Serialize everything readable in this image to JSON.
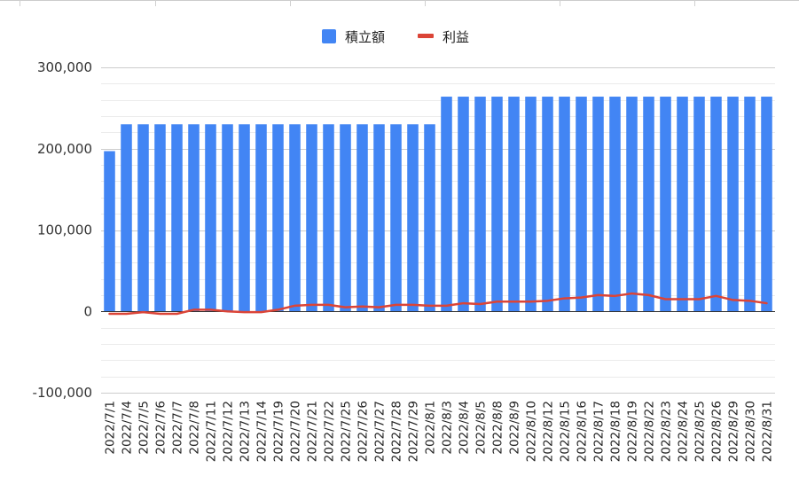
{
  "chart_data": {
    "type": "bar",
    "legend_position": "top-center",
    "grid": true,
    "ylim": [
      -100000,
      300000
    ],
    "yticks": [
      -100000,
      0,
      100000,
      200000,
      300000
    ],
    "ytick_labels": [
      "-100,000",
      "0",
      "100,000",
      "200,000",
      "300,000"
    ],
    "categories": [
      "2022/7/1",
      "2022/7/4",
      "2022/7/5",
      "2022/7/6",
      "2022/7/7",
      "2022/7/8",
      "2022/7/11",
      "2022/7/12",
      "2022/7/13",
      "2022/7/14",
      "2022/7/19",
      "2022/7/20",
      "2022/7/21",
      "2022/7/22",
      "2022/7/25",
      "2022/7/26",
      "2022/7/27",
      "2022/7/28",
      "2022/7/29",
      "2022/8/1",
      "2022/8/3",
      "2022/8/4",
      "2022/8/5",
      "2022/8/8",
      "2022/8/9",
      "2022/8/10",
      "2022/8/12",
      "2022/8/15",
      "2022/8/16",
      "2022/8/17",
      "2022/8/18",
      "2022/8/19",
      "2022/8/22",
      "2022/8/23",
      "2022/8/24",
      "2022/8/25",
      "2022/8/26",
      "2022/8/29",
      "2022/8/30",
      "2022/8/31"
    ],
    "series": [
      {
        "name": "積立額",
        "kind": "bar",
        "color": "#4285f4",
        "values": [
          197000,
          230000,
          230000,
          230000,
          230000,
          230000,
          230000,
          230000,
          230000,
          230000,
          230000,
          230000,
          230000,
          230000,
          230000,
          230000,
          230000,
          230000,
          230000,
          230000,
          264000,
          264000,
          264000,
          264000,
          264000,
          264000,
          264000,
          264000,
          264000,
          264000,
          264000,
          264000,
          264000,
          264000,
          264000,
          264000,
          264000,
          264000,
          264000,
          264000
        ]
      },
      {
        "name": "利益",
        "kind": "line",
        "color": "#db4437",
        "values": [
          -3000,
          -3000,
          -1000,
          -3000,
          -3000,
          2000,
          2000,
          0,
          -1000,
          -1000,
          2000,
          7000,
          8000,
          8000,
          5000,
          6000,
          5000,
          8000,
          8000,
          7000,
          7000,
          10000,
          9000,
          12000,
          12000,
          12000,
          13000,
          16000,
          17000,
          20000,
          19000,
          22000,
          20000,
          15000,
          15000,
          15000,
          19000,
          14000,
          13000,
          10000
        ]
      }
    ]
  }
}
